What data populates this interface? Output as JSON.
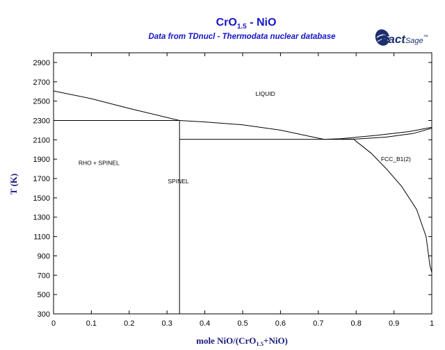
{
  "logo": {
    "word_bold": "Fact",
    "word_light": "Sage",
    "mark": "™"
  },
  "chart_data": {
    "type": "line",
    "title": {
      "main": "CrO",
      "sub": "1.5",
      "rest": " - NiO"
    },
    "subtitle": "Data from TDnucl - Thermodata nuclear database",
    "xlabel": {
      "pre": "mole NiO/(CrO",
      "sub": "1.5",
      "post": "+NiO)"
    },
    "ylabel": "T (K)",
    "xlim": [
      0,
      1
    ],
    "ylim": [
      300,
      3000
    ],
    "xticks": [
      0,
      0.1,
      0.2,
      0.3,
      0.4,
      0.5,
      0.6,
      0.7,
      0.8,
      0.9,
      1
    ],
    "xtick_labels": [
      "0",
      "0.1",
      "0.2",
      "0.3",
      "0.4",
      "0.5",
      "0.6",
      "0.7",
      "0.8",
      "0.9",
      "1"
    ],
    "yticks": [
      300,
      500,
      700,
      900,
      1100,
      1300,
      1500,
      1700,
      1900,
      2100,
      2300,
      2500,
      2700,
      2900
    ],
    "ytick_labels": [
      "300",
      "500",
      "700",
      "900",
      "1100",
      "1300",
      "1500",
      "1700",
      "1900",
      "2100",
      "2300",
      "2500",
      "2700",
      "2900"
    ],
    "grid": false,
    "legend": "none",
    "series": [
      {
        "points": [
          [
            0,
            2605
          ],
          [
            0.1,
            2525
          ],
          [
            0.2,
            2425
          ],
          [
            0.333,
            2300
          ]
        ]
      },
      {
        "points": [
          [
            0.333,
            2300
          ],
          [
            0.4,
            2285
          ],
          [
            0.5,
            2255
          ],
          [
            0.6,
            2200
          ],
          [
            0.66,
            2150
          ],
          [
            0.715,
            2105
          ]
        ]
      },
      {
        "points": [
          [
            0.715,
            2105
          ],
          [
            0.76,
            2112
          ],
          [
            0.85,
            2145
          ],
          [
            0.94,
            2185
          ],
          [
            1.0,
            2230
          ]
        ]
      },
      {
        "points": [
          [
            0.74,
            2105
          ],
          [
            0.8,
            2108
          ],
          [
            0.88,
            2128
          ],
          [
            0.95,
            2165
          ],
          [
            1.0,
            2220
          ]
        ]
      },
      {
        "points": [
          [
            0.795,
            2100
          ],
          [
            0.84,
            1960
          ],
          [
            0.88,
            1800
          ],
          [
            0.92,
            1620
          ],
          [
            0.96,
            1380
          ],
          [
            0.985,
            1100
          ],
          [
            0.995,
            800
          ],
          [
            1.0,
            730
          ]
        ]
      },
      {
        "points": [
          [
            0,
            2300
          ],
          [
            0.333,
            2300
          ]
        ]
      },
      {
        "points": [
          [
            0.333,
            300
          ],
          [
            0.333,
            2300
          ]
        ]
      },
      {
        "points": [
          [
            0.333,
            2105
          ],
          [
            0.795,
            2105
          ]
        ]
      }
    ],
    "annotations": [
      {
        "text": "LIQUID",
        "x": 0.56,
        "y": 2555
      },
      {
        "text": "RHO + SPINEL",
        "x": 0.12,
        "y": 1840
      },
      {
        "text": "SPINEL",
        "x": 0.33,
        "y": 1650
      },
      {
        "text": "FCC_B1(2)",
        "x": 0.905,
        "y": 1880
      }
    ]
  }
}
